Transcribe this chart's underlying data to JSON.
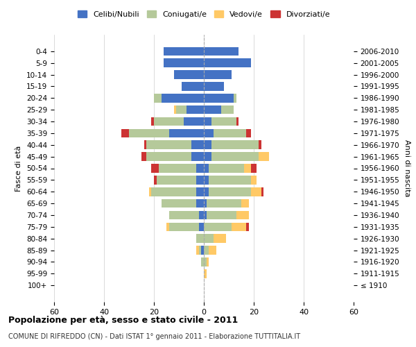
{
  "age_groups": [
    "100+",
    "95-99",
    "90-94",
    "85-89",
    "80-84",
    "75-79",
    "70-74",
    "65-69",
    "60-64",
    "55-59",
    "50-54",
    "45-49",
    "40-44",
    "35-39",
    "30-34",
    "25-29",
    "20-24",
    "15-19",
    "10-14",
    "5-9",
    "0-4"
  ],
  "birth_years": [
    "≤ 1910",
    "1911-1915",
    "1916-1920",
    "1921-1925",
    "1926-1930",
    "1931-1935",
    "1936-1940",
    "1941-1945",
    "1946-1950",
    "1951-1955",
    "1956-1960",
    "1961-1965",
    "1966-1970",
    "1971-1975",
    "1976-1980",
    "1981-1985",
    "1986-1990",
    "1991-1995",
    "1996-2000",
    "2001-2005",
    "2006-2010"
  ],
  "male": {
    "celibi": [
      0,
      0,
      0,
      1,
      0,
      2,
      2,
      3,
      3,
      3,
      3,
      5,
      5,
      14,
      8,
      7,
      17,
      9,
      12,
      16,
      16
    ],
    "coniugati": [
      0,
      0,
      1,
      1,
      3,
      12,
      12,
      14,
      18,
      16,
      15,
      18,
      18,
      16,
      12,
      4,
      3,
      0,
      0,
      0,
      0
    ],
    "vedovi": [
      0,
      0,
      0,
      1,
      0,
      1,
      0,
      0,
      1,
      0,
      0,
      0,
      0,
      0,
      0,
      1,
      0,
      0,
      0,
      0,
      0
    ],
    "divorziati": [
      0,
      0,
      0,
      0,
      0,
      0,
      0,
      0,
      0,
      1,
      3,
      2,
      1,
      3,
      1,
      0,
      0,
      0,
      0,
      0,
      0
    ]
  },
  "female": {
    "nubili": [
      0,
      0,
      0,
      0,
      0,
      0,
      1,
      1,
      2,
      2,
      2,
      3,
      3,
      4,
      3,
      7,
      12,
      8,
      11,
      19,
      14
    ],
    "coniugate": [
      0,
      0,
      1,
      2,
      4,
      11,
      12,
      14,
      17,
      17,
      14,
      19,
      19,
      13,
      10,
      5,
      1,
      0,
      0,
      0,
      0
    ],
    "vedove": [
      0,
      1,
      1,
      3,
      5,
      6,
      5,
      3,
      4,
      2,
      3,
      4,
      0,
      0,
      0,
      0,
      0,
      0,
      0,
      0,
      0
    ],
    "divorziate": [
      0,
      0,
      0,
      0,
      0,
      1,
      0,
      0,
      1,
      0,
      2,
      0,
      1,
      2,
      1,
      0,
      0,
      0,
      0,
      0,
      0
    ]
  },
  "colors": {
    "celibi": "#4472c4",
    "coniugati": "#b5c99a",
    "vedovi": "#ffc966",
    "divorziati": "#cc3333"
  },
  "legend_labels": [
    "Celibi/Nubili",
    "Coniugati/e",
    "Vedovi/e",
    "Divorziati/e"
  ],
  "title": "Popolazione per età, sesso e stato civile - 2011",
  "subtitle": "COMUNE DI RIFREDDO (CN) - Dati ISTAT 1° gennaio 2011 - Elaborazione TUTTITALIA.IT",
  "ylabel_left": "Fasce di età",
  "ylabel_right": "Anni di nascita",
  "xlim": 60,
  "background_color": "#ffffff",
  "grid_color": "#cccccc"
}
